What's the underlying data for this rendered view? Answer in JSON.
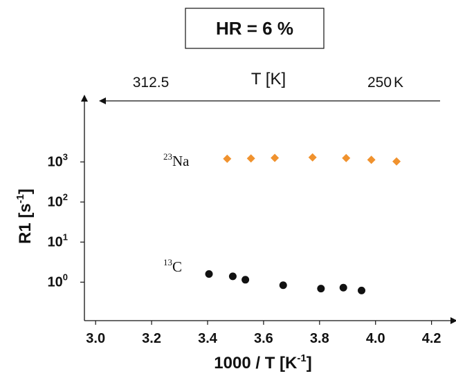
{
  "chart_data": {
    "type": "scatter",
    "title": "HR = 6 %",
    "xlabel": "1000 / T [K",
    "xlabel_sup": "-1",
    "xlabel_end": "]",
    "ylabel": "R1 [s",
    "ylabel_sup": "-1",
    "ylabel_end": "]",
    "x_ticks": [
      "3.0",
      "3.2",
      "3.4",
      "3.6",
      "3.8",
      "4.0",
      "4.2"
    ],
    "xlim": [
      2.96,
      4.28
    ],
    "y_scale": "log",
    "y_ticks": [
      {
        "base": "10",
        "exp": "0",
        "value": 1
      },
      {
        "base": "10",
        "exp": "1",
        "value": 10
      },
      {
        "base": "10",
        "exp": "2",
        "value": 100
      },
      {
        "base": "10",
        "exp": "3",
        "value": 1000
      }
    ],
    "top_axis": {
      "label": "T [K]",
      "left_tick": "312.5",
      "right_tick": "250",
      "right_unit": "K"
    },
    "series": [
      {
        "name_sup": "23",
        "name": "Na",
        "marker": "diamond",
        "color": "#f0922e",
        "x": [
          3.47,
          3.555,
          3.64,
          3.775,
          3.895,
          3.985,
          4.075
        ],
        "y": [
          1200,
          1220,
          1260,
          1300,
          1250,
          1130,
          1030
        ]
      },
      {
        "name_sup": "13",
        "name": "C",
        "marker": "circle",
        "color": "#111111",
        "x": [
          3.405,
          3.49,
          3.535,
          3.67,
          3.805,
          3.885,
          3.95
        ],
        "y": [
          1.6,
          1.4,
          1.15,
          0.84,
          0.69,
          0.73,
          0.62
        ]
      }
    ]
  }
}
